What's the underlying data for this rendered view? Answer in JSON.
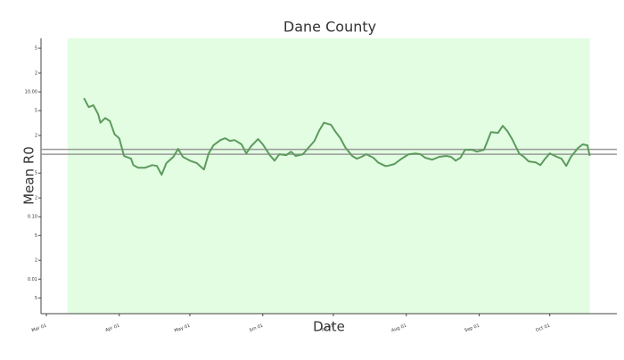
{
  "chart_data": {
    "type": "line",
    "title": "Dane County",
    "x_label": "Date",
    "y_label": "Mean R0",
    "log_scale": true,
    "color": "#5e9a5e",
    "highlight": [
      "Mar 10",
      "Oct 18"
    ],
    "highlight_color": "#e2fde2",
    "reference_lines": [
      1.2,
      1
    ],
    "reference_color": "#999999",
    "xlim": [
      "Mar 01",
      "Oct 28"
    ],
    "xticks": [
      "Mar 01",
      "Apr 01",
      "May 01",
      "Jun 01",
      "Jul 01",
      "Aug 01",
      "Sep 01",
      "Oct 01"
    ],
    "ylim": [
      0.0028,
      72
    ],
    "yticks": [
      {
        "value": 50,
        "label": "5"
      },
      {
        "value": 20,
        "label": "2"
      },
      {
        "value": 10,
        "label": "10.00"
      },
      {
        "value": 5,
        "label": "5"
      },
      {
        "value": 2,
        "label": "2"
      },
      {
        "value": 0.5,
        "label": "5"
      },
      {
        "value": 0.2,
        "label": "2"
      },
      {
        "value": 0.1,
        "label": "0.10"
      },
      {
        "value": 0.05,
        "label": "5"
      },
      {
        "value": 0.02,
        "label": "2"
      },
      0.01,
      {
        "value": 0.005,
        "label": "5"
      }
    ],
    "x": [
      "Mar 17",
      "Mar 19",
      "Mar 21",
      "Mar 23",
      "Mar 24",
      "Mar 26",
      "Mar 28",
      "Mar 30",
      "Apr 01",
      "Apr 03",
      "Apr 06",
      "Apr 07",
      "Apr 09",
      "Apr 12",
      "Apr 15",
      "Apr 17",
      "Apr 19",
      "Apr 21",
      "Apr 24",
      "Apr 26",
      "Apr 28",
      "May 01",
      "May 04",
      "May 07",
      "May 09",
      "May 11",
      "May 14",
      "May 16",
      "May 18",
      "May 20",
      "May 23",
      "May 25",
      "May 27",
      "May 30",
      "Jun 01",
      "Jun 04",
      "Jun 06",
      "Jun 08",
      "Jun 11",
      "Jun 13",
      "Jun 15",
      "Jun 18",
      "Jun 20",
      "Jun 23",
      "Jun 25",
      "Jun 27",
      "Jun 30",
      "Jul 02",
      "Jul 04",
      "Jul 06",
      "Jul 09",
      "Jul 11",
      "Jul 13",
      "Jul 15",
      "Jul 18",
      "Jul 20",
      "Jul 23",
      "Jul 24",
      "Jul 27",
      "Jul 30",
      "Aug 02",
      "Aug 05",
      "Aug 07",
      "Aug 09",
      "Aug 12",
      "Aug 15",
      "Aug 18",
      "Aug 20",
      "Aug 22",
      "Aug 24",
      "Aug 26",
      "Aug 29",
      "Aug 31",
      "Sep 03",
      "Sep 05",
      "Sep 06",
      "Sep 09",
      "Sep 11",
      "Sep 13",
      "Sep 15",
      "Sep 18",
      "Sep 20",
      "Sep 22",
      "Sep 25",
      "Sep 27",
      "Sep 29",
      "Oct 01",
      "Oct 04",
      "Oct 06",
      "Oct 08",
      "Oct 10",
      "Oct 13",
      "Oct 15",
      "Oct 17",
      "Oct 18"
    ],
    "values": [
      7.9,
      5.7,
      6.1,
      4.4,
      3.2,
      3.8,
      3.4,
      2.1,
      1.8,
      0.94,
      0.85,
      0.67,
      0.61,
      0.61,
      0.67,
      0.65,
      0.47,
      0.72,
      0.91,
      1.22,
      0.91,
      0.79,
      0.72,
      0.57,
      1.03,
      1.39,
      1.69,
      1.81,
      1.64,
      1.69,
      1.44,
      1.03,
      1.34,
      1.75,
      1.44,
      0.97,
      0.79,
      1.0,
      0.97,
      1.1,
      0.94,
      1.0,
      1.22,
      1.64,
      2.4,
      3.2,
      2.96,
      2.27,
      1.81,
      1.3,
      0.94,
      0.85,
      0.91,
      1.0,
      0.88,
      0.74,
      0.65,
      0.65,
      0.7,
      0.85,
      1.0,
      1.03,
      1.0,
      0.88,
      0.82,
      0.91,
      0.94,
      0.91,
      0.79,
      0.88,
      1.18,
      1.18,
      1.1,
      1.18,
      1.81,
      2.27,
      2.2,
      2.86,
      2.35,
      1.75,
      1.03,
      0.91,
      0.77,
      0.74,
      0.67,
      0.85,
      1.03,
      0.91,
      0.85,
      0.65,
      0.91,
      1.26,
      1.44,
      1.39,
      0.94
    ]
  }
}
